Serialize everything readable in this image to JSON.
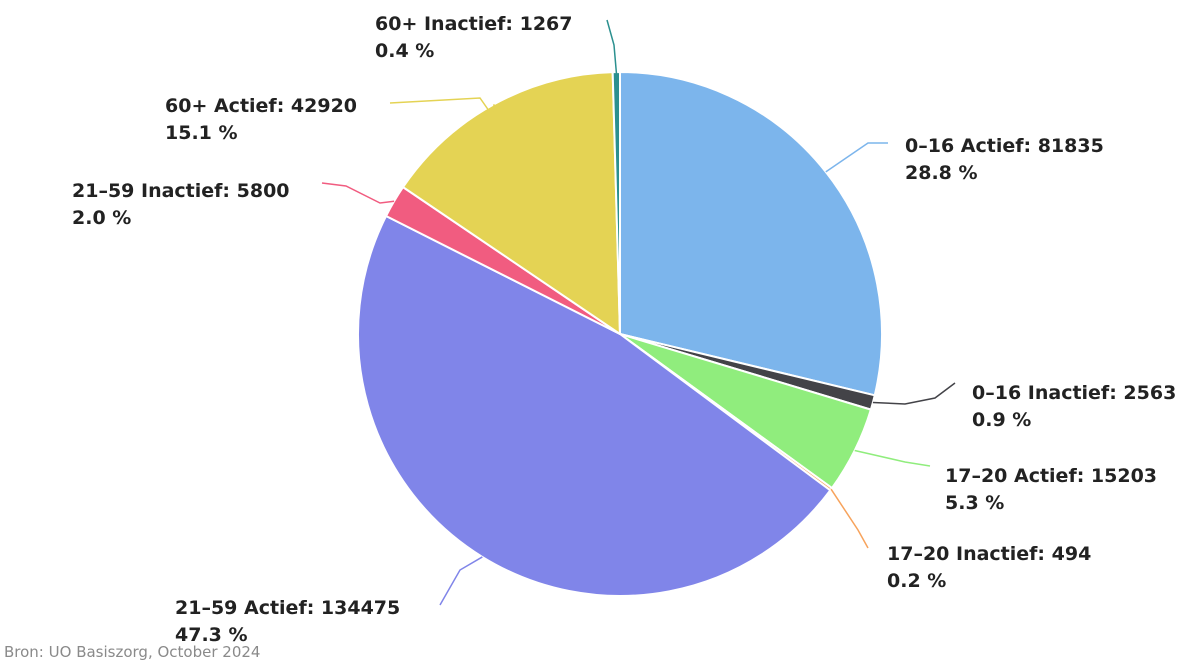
{
  "chart_data": {
    "type": "pie",
    "slices": [
      {
        "label": "0-16 Actief",
        "value": 81835,
        "percent_label": "28.8 %",
        "color": "#7cb5ec"
      },
      {
        "label": "0-16 Inactief",
        "value": 2563,
        "percent_label": "0.9 %",
        "color": "#434348"
      },
      {
        "label": "17-20 Actief",
        "value": 15203,
        "percent_label": "5.3 %",
        "color": "#90ed7d"
      },
      {
        "label": "17-20 Inactief",
        "value": 494,
        "percent_label": "0.2 %",
        "color": "#f7a35c"
      },
      {
        "label": "21-59 Actief",
        "value": 134475,
        "percent_label": "47.3 %",
        "color": "#8085e9"
      },
      {
        "label": "21-59 Inactief",
        "value": 5800,
        "percent_label": "2.0 %",
        "color": "#f15c80"
      },
      {
        "label": "60+ Actief",
        "value": 42920,
        "percent_label": "15.1 %",
        "color": "#e4d354"
      },
      {
        "label": "60+ Inactief",
        "value": 1267,
        "percent_label": "0.4 %",
        "color": "#2b908f"
      }
    ],
    "legend": "none",
    "data_labels": "outside-with-connectors",
    "credits": "Bron: UO Basiszorg, October 2024"
  }
}
